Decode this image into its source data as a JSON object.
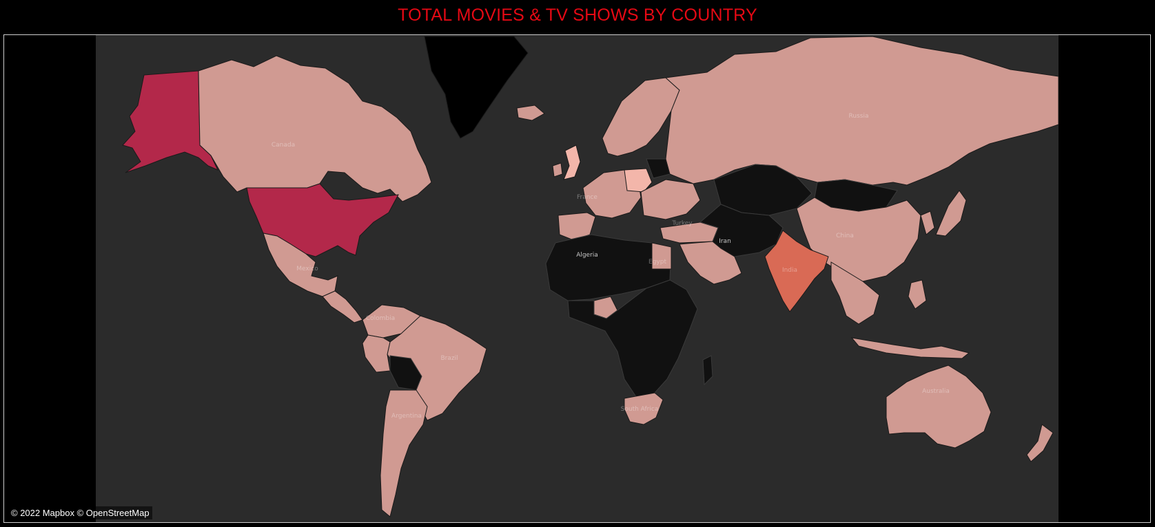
{
  "title": "TOTAL MOVIES & TV SHOWS BY COUNTRY",
  "attribution": "© 2022 Mapbox © OpenStreetMap",
  "colors": {
    "ocean": "#2b2b2b",
    "very_high": "#b3284a",
    "high": "#d96a55",
    "medium": "#d09a92",
    "low_highlight": "#f3b6aa",
    "none": "#111111"
  },
  "map_labels": {
    "russia": "Russia",
    "canada": "Canada",
    "china": "China",
    "iran": "Iran",
    "algeria": "Algeria",
    "india": "India",
    "brazil": "Brazil",
    "australia": "Australia",
    "argentina": "Argentina",
    "mexico": "Mexico",
    "egypt": "Egypt",
    "france": "France",
    "turkey": "Turkey",
    "south_africa": "South Africa",
    "colombia": "Colombia"
  }
}
